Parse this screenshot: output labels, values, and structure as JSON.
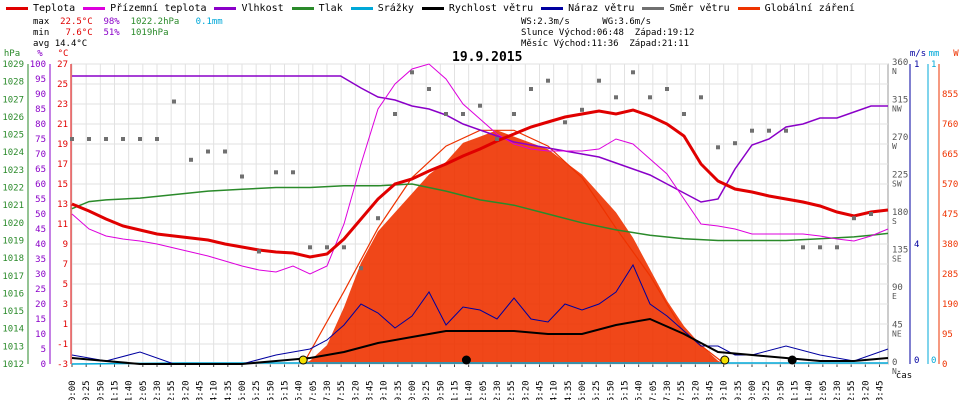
{
  "chart_data": {
    "type": "line",
    "title": "19.9.2015",
    "legend": [
      {
        "name": "Teplota",
        "color": "#e00000"
      },
      {
        "name": "Přízemní teplota",
        "color": "#dd00dd"
      },
      {
        "name": "Vlhkost",
        "color": "#8a00c8"
      },
      {
        "name": "Tlak",
        "color": "#2a8a2a"
      },
      {
        "name": "Srážky",
        "color": "#00a8d8"
      },
      {
        "name": "Rychlost větru",
        "color": "#000000"
      },
      {
        "name": "Náraz větru",
        "color": "#0000a0"
      },
      {
        "name": "Směr větru",
        "color": "#707070"
      },
      {
        "name": "Globální záření",
        "color": "#ee3300"
      }
    ],
    "stats": {
      "max_label": "max",
      "min_label": "min",
      "avg_label": "avg",
      "temp_max": "22.5°C",
      "temp_min": "7.6°C",
      "temp_avg": "14.4°C",
      "hum_max": "98%",
      "hum_min": "51%",
      "press_max": "1022.2hPa",
      "press_min": "1019hPa",
      "rain": "0.1mm"
    },
    "info": {
      "ws": "WS:2.3m/s",
      "wg": "WG:3.6m/s",
      "sunrise": "Slunce Východ:06:48",
      "sunset": "Západ:19:12",
      "moonrise": "Měsíc Východ:11:36",
      "moonset": "Západ:21:11"
    },
    "axes": {
      "hpa_label": "hPa",
      "pct_label": "%",
      "temp_label": "°C",
      "ms_label": "m/s",
      "mm_label": "mm",
      "w_label": "W",
      "hpa_ticks": [
        "1029",
        "1028",
        "1027",
        "1026",
        "1025",
        "1024",
        "1023",
        "1022",
        "1021",
        "1020",
        "1019",
        "1018",
        "1017",
        "1016",
        "1015",
        "1014",
        "1013",
        "1012"
      ],
      "pct_ticks": [
        "100",
        "95",
        "90",
        "85",
        "80",
        "75",
        "70",
        "65",
        "60",
        "55",
        "50",
        "45",
        "40",
        "35",
        "30",
        "25",
        "20",
        "15",
        "10",
        "5",
        "0"
      ],
      "temp_ticks": [
        "27",
        "25",
        "23",
        "21",
        "19",
        "17",
        "15",
        "13",
        "11",
        "9",
        "7",
        "5",
        "3",
        "1",
        "-1",
        "-3"
      ],
      "dir_ticks": [
        {
          "deg": "360",
          "lbl": "N"
        },
        {
          "deg": "315",
          "lbl": "NW"
        },
        {
          "deg": "270",
          "lbl": "W"
        },
        {
          "deg": "225",
          "lbl": "SW"
        },
        {
          "deg": "180",
          "lbl": "S"
        },
        {
          "deg": "135",
          "lbl": "SE"
        },
        {
          "deg": "90",
          "lbl": "E"
        },
        {
          "deg": "45",
          "lbl": "NE"
        },
        {
          "deg": "0",
          "lbl": "N"
        }
      ],
      "ms_ticks": [
        "4",
        "1",
        "0"
      ],
      "mm_ticks": [
        "1",
        "0"
      ],
      "w_ticks": [
        "855",
        "760",
        "665",
        "570",
        "475",
        "380",
        "285",
        "190",
        "95",
        "0"
      ],
      "time_ticks": [
        "00:00",
        "00:25",
        "00:50",
        "01:15",
        "01:40",
        "02:05",
        "02:30",
        "02:55",
        "03:20",
        "03:45",
        "04:10",
        "04:35",
        "05:00",
        "05:25",
        "05:50",
        "06:15",
        "06:40",
        "07:05",
        "07:30",
        "07:55",
        "08:20",
        "08:45",
        "09:10",
        "09:35",
        "10:00",
        "10:25",
        "10:50",
        "11:15",
        "11:40",
        "12:05",
        "12:30",
        "12:55",
        "13:20",
        "13:45",
        "14:10",
        "14:35",
        "15:00",
        "15:25",
        "15:50",
        "16:15",
        "16:40",
        "17:05",
        "17:30",
        "17:55",
        "18:20",
        "18:45",
        "19:10",
        "19:35",
        "20:00",
        "20:25",
        "20:50",
        "21:15",
        "21:40",
        "22:05",
        "22:30",
        "22:55",
        "23:20",
        "23:45"
      ],
      "time_label": "čas",
      "x_range_hours": [
        0,
        24
      ]
    },
    "series": {
      "temperature": {
        "x": [
          0,
          0.5,
          1,
          1.5,
          2,
          2.5,
          3,
          3.5,
          4,
          4.5,
          5,
          5.5,
          6,
          6.5,
          7,
          7.5,
          8,
          8.5,
          9,
          9.5,
          10,
          10.5,
          11,
          11.5,
          12,
          12.5,
          13,
          13.5,
          14,
          14.5,
          15,
          15.5,
          16,
          16.5,
          17,
          17.5,
          18,
          18.5,
          19,
          19.5,
          20,
          20.5,
          21,
          21.5,
          22,
          22.5,
          23,
          23.5,
          24
        ],
        "y": [
          13.0,
          12.3,
          11.5,
          10.8,
          10.4,
          10.0,
          9.8,
          9.6,
          9.4,
          9.0,
          8.7,
          8.4,
          8.2,
          8.1,
          7.7,
          8.0,
          9.5,
          11.5,
          13.5,
          15.0,
          15.5,
          16.3,
          17.0,
          17.8,
          18.5,
          19.3,
          20.0,
          20.7,
          21.2,
          21.7,
          22.0,
          22.3,
          22.0,
          22.4,
          21.8,
          21.0,
          19.8,
          17.0,
          15.3,
          14.5,
          14.2,
          13.8,
          13.5,
          13.2,
          12.8,
          12.2,
          11.8,
          12.2,
          12.4
        ]
      },
      "ground_temp": {
        "x": [
          0,
          0.5,
          1,
          1.5,
          2,
          2.5,
          3,
          3.5,
          4,
          4.5,
          5,
          5.5,
          6,
          6.5,
          7,
          7.5,
          8,
          8.5,
          9,
          9.5,
          10,
          10.5,
          11,
          11.5,
          12,
          12.5,
          13,
          13.5,
          14,
          14.5,
          15,
          15.5,
          16,
          16.5,
          17,
          17.5,
          18,
          18.5,
          19,
          19.5,
          20,
          20.5,
          21,
          21.5,
          22,
          22.5,
          23,
          23.5,
          24
        ],
        "y": [
          12.0,
          10.5,
          9.8,
          9.5,
          9.3,
          9.0,
          8.6,
          8.2,
          7.8,
          7.3,
          6.8,
          6.4,
          6.2,
          6.8,
          6.0,
          6.8,
          11.0,
          17.0,
          22.5,
          25.0,
          26.5,
          27.0,
          25.5,
          23.0,
          21.5,
          20.0,
          19.0,
          18.5,
          18.3,
          18.3,
          18.3,
          18.5,
          19.5,
          19.0,
          17.5,
          16.0,
          13.5,
          11.0,
          10.8,
          10.5,
          10.0,
          10.0,
          10.0,
          10.0,
          9.8,
          9.5,
          9.3,
          9.8,
          10.5
        ]
      },
      "humidity": {
        "x": [
          0,
          1,
          2,
          3,
          4,
          5,
          6,
          7,
          7.9,
          8.5,
          9,
          9.5,
          10,
          10.5,
          11,
          11.5,
          12,
          12.5,
          13,
          13.5,
          14,
          14.5,
          15,
          15.5,
          16,
          16.5,
          17,
          17.5,
          18,
          18.5,
          19,
          19.5,
          20,
          20.5,
          21,
          21.5,
          22,
          22.5,
          23,
          23.5,
          24
        ],
        "y": [
          96,
          96,
          96,
          96,
          96,
          96,
          96,
          96,
          96,
          92,
          89,
          88,
          86,
          85,
          83,
          80,
          78,
          76,
          74,
          73,
          72,
          71,
          70,
          69,
          67,
          65,
          63,
          60,
          57,
          54,
          55,
          65,
          73,
          75,
          79,
          80,
          82,
          82,
          84,
          86,
          86
        ]
      },
      "pressure": {
        "x": [
          0,
          0.5,
          1,
          2,
          3,
          4,
          5,
          6,
          7,
          8,
          9,
          10,
          11,
          12,
          13,
          14,
          15,
          16,
          17,
          18,
          19,
          20,
          21,
          22,
          23,
          23.5,
          24
        ],
        "y": [
          1020.8,
          1021.2,
          1021.3,
          1021.4,
          1021.6,
          1021.8,
          1021.9,
          1022.0,
          1022.0,
          1022.1,
          1022.1,
          1022.2,
          1021.8,
          1021.3,
          1021.0,
          1020.5,
          1020.0,
          1019.6,
          1019.3,
          1019.1,
          1019.0,
          1019.0,
          1019.0,
          1019.1,
          1019.2,
          1019.3,
          1019.4
        ]
      },
      "rain": {
        "x": [
          0,
          3.3,
          24
        ],
        "y": [
          0,
          0.1,
          0.1
        ]
      },
      "wind_speed": {
        "x": [
          0,
          1,
          2,
          3,
          4,
          5,
          6,
          7,
          8,
          9,
          10,
          11,
          12,
          13,
          14,
          15,
          16,
          17,
          18,
          19,
          20,
          21,
          22,
          23,
          24
        ],
        "y": [
          0.2,
          0.1,
          0.0,
          0.0,
          0.0,
          0.0,
          0.1,
          0.2,
          0.4,
          0.7,
          0.9,
          1.1,
          1.1,
          1.1,
          1.0,
          1.0,
          1.3,
          1.5,
          1.0,
          0.4,
          0.3,
          0.2,
          0.1,
          0.1,
          0.2
        ]
      },
      "wind_gust": {
        "x": [
          0,
          1,
          2,
          3,
          4,
          5,
          6,
          7,
          7.5,
          8,
          8.5,
          9,
          9.5,
          10,
          10.5,
          11,
          11.5,
          12,
          12.5,
          13,
          13.5,
          14,
          14.5,
          15,
          15.5,
          16,
          16.5,
          17,
          17.5,
          18,
          18.5,
          19,
          19.5,
          20,
          21,
          22,
          23,
          24
        ],
        "y": [
          0.3,
          0.1,
          0.4,
          0.0,
          0.0,
          0.0,
          0.3,
          0.5,
          0.8,
          1.3,
          2.0,
          1.7,
          1.2,
          1.6,
          2.4,
          1.3,
          1.9,
          1.8,
          1.5,
          2.2,
          1.5,
          1.4,
          2.0,
          1.8,
          2.0,
          2.4,
          3.3,
          2.0,
          1.6,
          1.1,
          0.6,
          0.6,
          0.3,
          0.3,
          0.6,
          0.3,
          0.1,
          0.5
        ]
      },
      "wind_dir": {
        "x": [
          0,
          0.5,
          1,
          1.5,
          2,
          2.5,
          3,
          3.5,
          4,
          4.5,
          5,
          5.5,
          6,
          6.5,
          7,
          7.5,
          8,
          8.5,
          9,
          9.5,
          10,
          10.5,
          11,
          11.5,
          12,
          12.5,
          13,
          13.5,
          14,
          14.5,
          15,
          15.5,
          16,
          16.5,
          17,
          17.5,
          18,
          18.5,
          19,
          19.5,
          20,
          20.5,
          21,
          21.5,
          22,
          22.5,
          23,
          23.5
        ],
        "y": [
          270,
          270,
          270,
          270,
          270,
          270,
          315,
          245,
          255,
          255,
          225,
          135,
          230,
          230,
          140,
          140,
          140,
          115,
          175,
          300,
          350,
          330,
          300,
          300,
          310,
          270,
          300,
          330,
          340,
          290,
          305,
          340,
          320,
          350,
          320,
          330,
          300,
          320,
          260,
          265,
          280,
          280,
          280,
          140,
          140,
          140,
          175,
          180
        ]
      },
      "radiation": {
        "x": [
          6.8,
          7,
          7.5,
          8,
          8.5,
          9,
          9.5,
          10,
          10.5,
          11,
          11.5,
          12,
          12.5,
          13,
          13.5,
          14,
          14.5,
          15,
          15.5,
          16,
          16.5,
          17,
          17.5,
          18,
          18.5,
          19,
          19.2
        ],
        "y": [
          0,
          10,
          60,
          180,
          320,
          420,
          480,
          540,
          600,
          640,
          700,
          720,
          740,
          720,
          700,
          680,
          640,
          600,
          540,
          480,
          400,
          300,
          200,
          120,
          60,
          10,
          0
        ]
      },
      "theoretical_radiation": {
        "x": [
          6.8,
          8,
          9,
          10,
          11,
          12,
          13,
          14,
          15,
          16,
          17,
          18,
          19.2
        ],
        "y": [
          0,
          230,
          430,
          590,
          690,
          740,
          740,
          690,
          590,
          430,
          280,
          100,
          0
        ]
      }
    }
  }
}
